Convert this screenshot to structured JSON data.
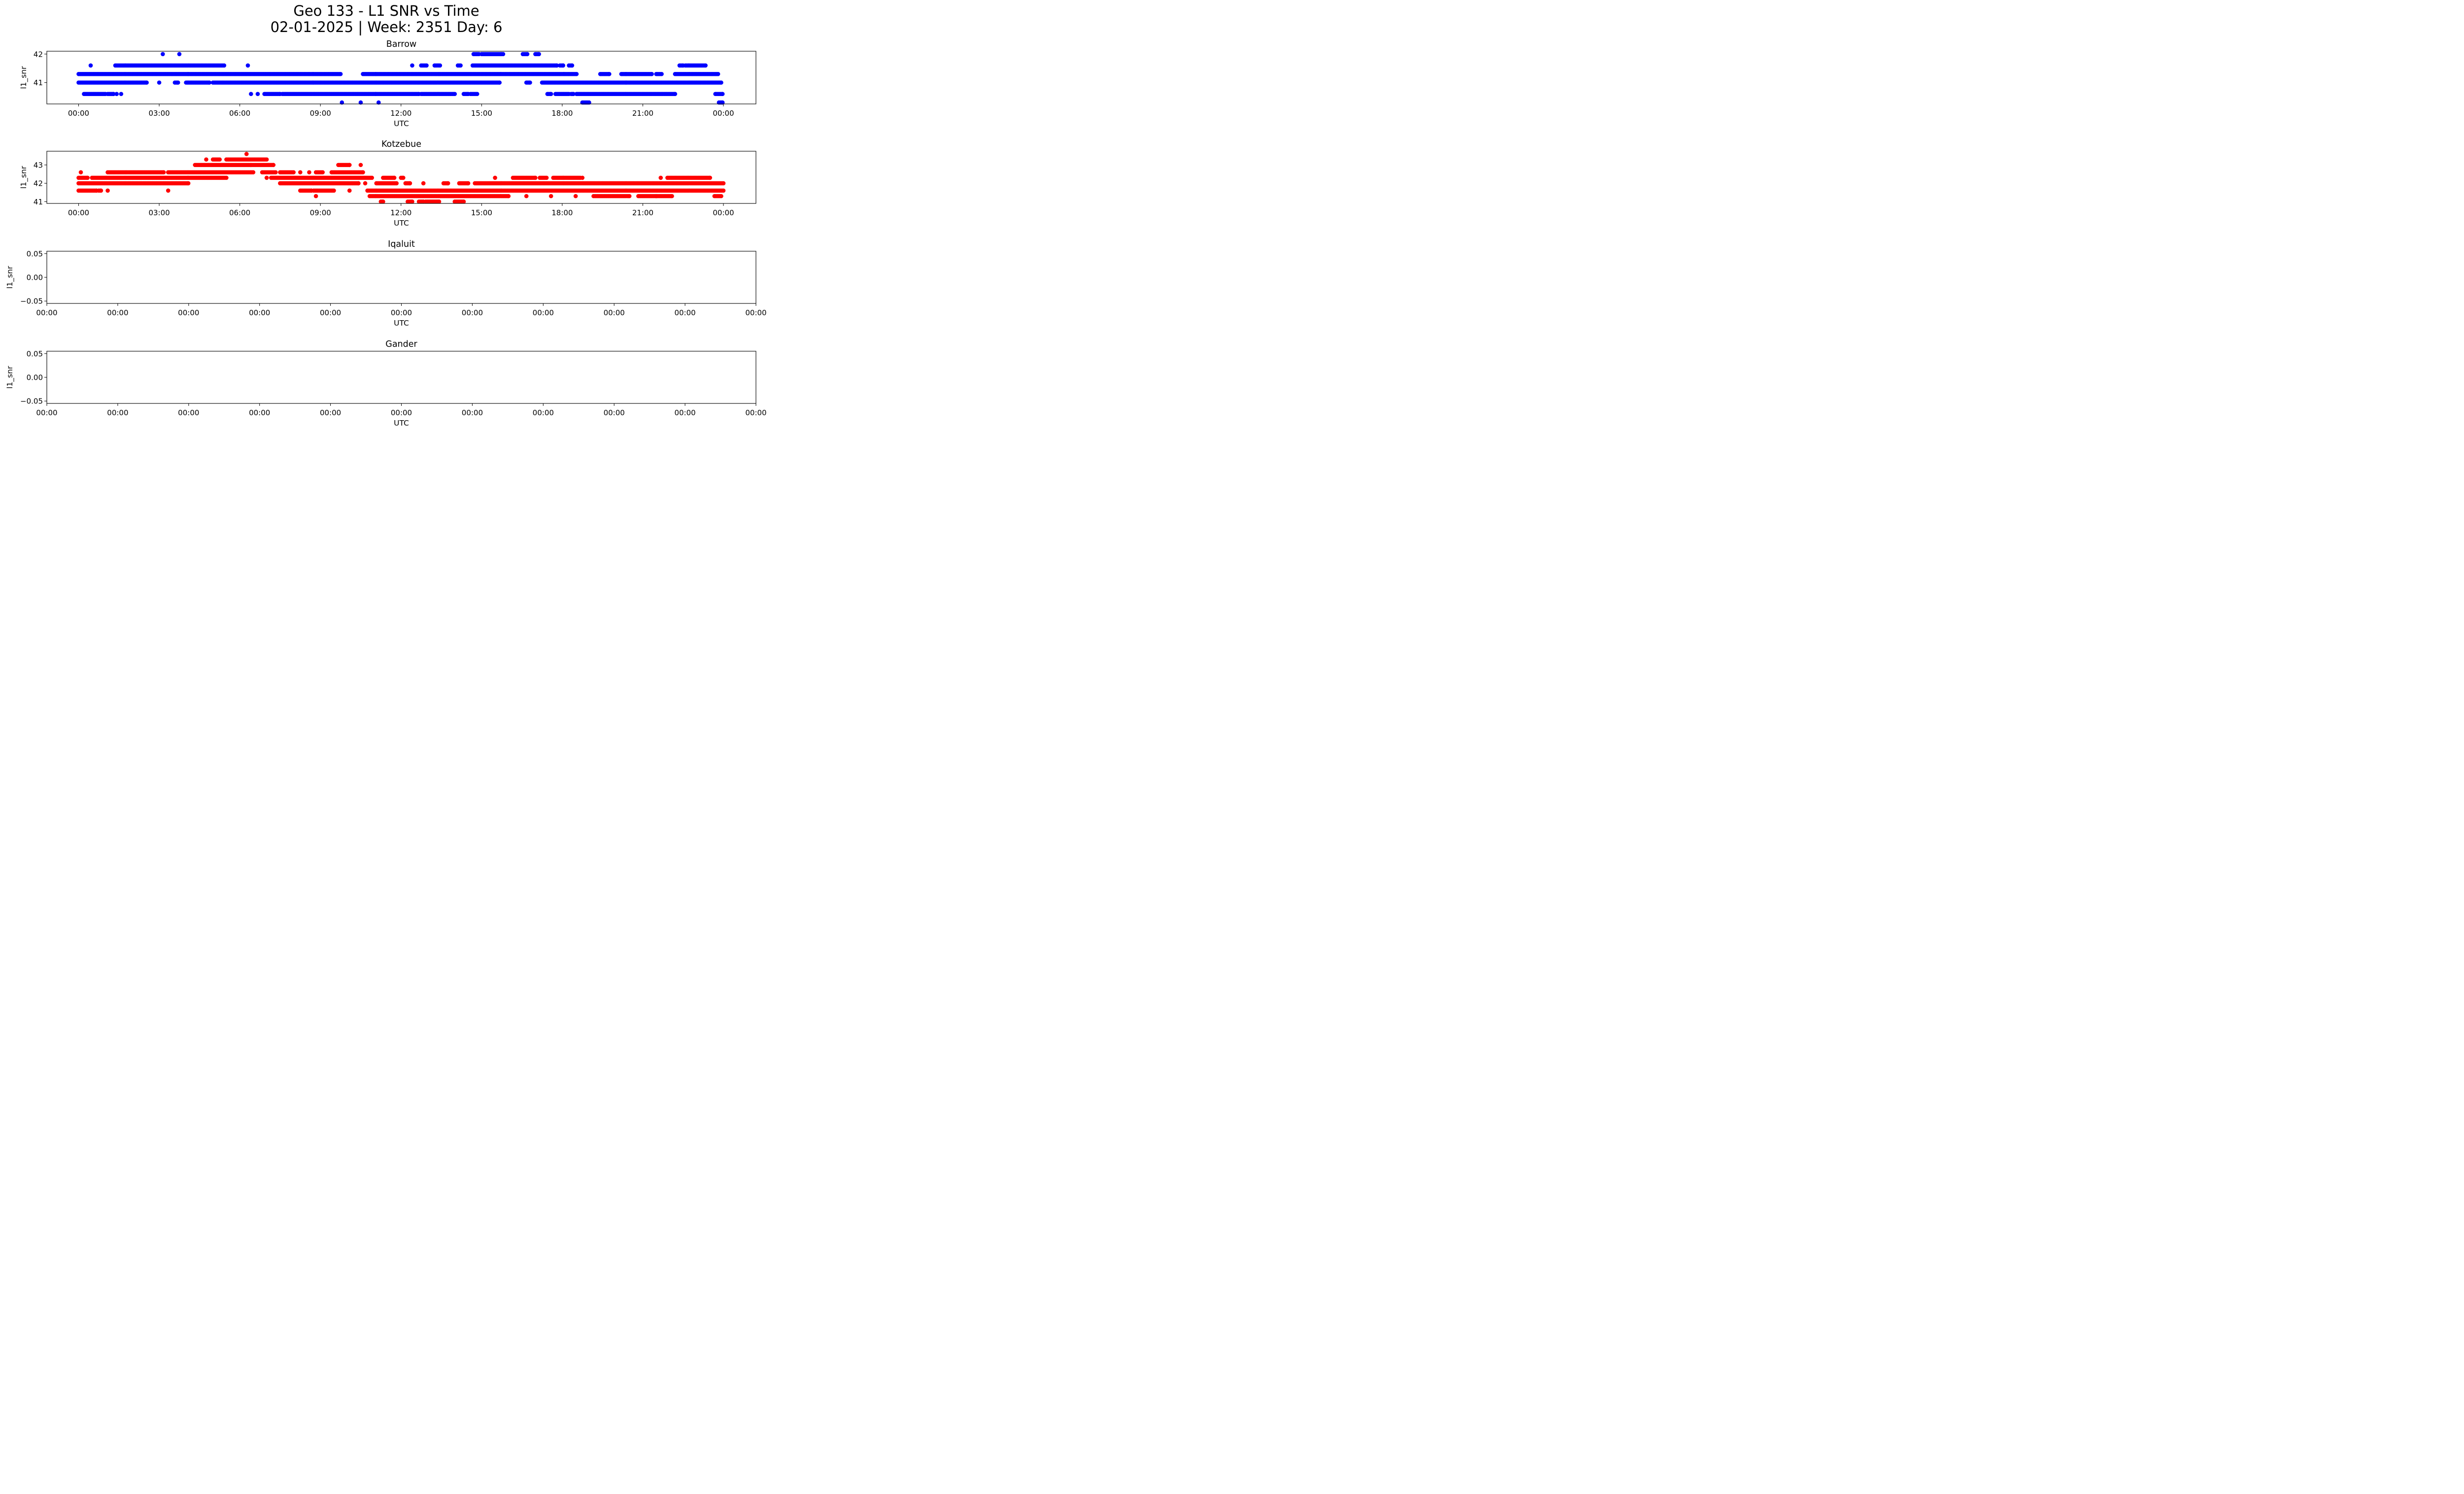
{
  "figure": {
    "title_line1": "Geo 133 - L1 SNR vs Time",
    "title_line2": "02-01-2025 | Week: 2351 Day: 6"
  },
  "colors": {
    "axes": "#000000",
    "background": "#ffffff"
  },
  "chart_data": [
    {
      "type": "scatter",
      "title": "Barrow",
      "xlabel": "UTC",
      "ylabel": "l1_snr",
      "color": "#0000ff",
      "xlim": [
        "2025-02-01T00:00",
        "2025-02-02T00:00"
      ],
      "ylim": [
        40.25,
        42.1
      ],
      "x_ticks": [
        "00:00",
        "03:00",
        "06:00",
        "09:00",
        "12:00",
        "15:00",
        "18:00",
        "21:00",
        "00:00"
      ],
      "y_ticks": [
        "41",
        "42"
      ],
      "y_tick_values": [
        41,
        42
      ],
      "grid": false,
      "series": [
        {
          "runs": [
            {
              "y": 42.0,
              "segments": [
                [
                  "03:08",
                  "03:08"
                ],
                [
                  "03:45",
                  "03:45"
                ],
                [
                  "14:42",
                  "14:54"
                ],
                [
                  "15:00",
                  "15:48"
                ],
                [
                  "16:32",
                  "16:42"
                ],
                [
                  "17:00",
                  "17:08"
                ]
              ]
            },
            {
              "y": 41.6,
              "segments": [
                [
                  "00:27",
                  "00:27"
                ],
                [
                  "01:22",
                  "05:25"
                ],
                [
                  "06:18",
                  "06:18"
                ],
                [
                  "12:25",
                  "12:25"
                ],
                [
                  "12:45",
                  "12:57"
                ],
                [
                  "13:15",
                  "13:27"
                ],
                [
                  "14:07",
                  "14:13"
                ],
                [
                  "14:40",
                  "17:48"
                ],
                [
                  "17:55",
                  "18:02"
                ],
                [
                  "18:15",
                  "18:22"
                ],
                [
                  "22:22",
                  "22:30"
                ],
                [
                  "22:35",
                  "23:20"
                ]
              ]
            },
            {
              "y": 41.3,
              "segments": [
                [
                  "00:00",
                  "09:45"
                ],
                [
                  "10:35",
                  "18:32"
                ],
                [
                  "19:25",
                  "19:45"
                ],
                [
                  "20:12",
                  "21:20"
                ],
                [
                  "21:30",
                  "21:42"
                ],
                [
                  "22:12",
                  "23:48"
                ]
              ]
            },
            {
              "y": 41.0,
              "segments": [
                [
                  "00:00",
                  "02:32"
                ],
                [
                  "03:00",
                  "03:00"
                ],
                [
                  "03:35",
                  "03:42"
                ],
                [
                  "04:00",
                  "04:52"
                ],
                [
                  "05:00",
                  "15:40"
                ],
                [
                  "16:40",
                  "16:48"
                ],
                [
                  "17:15",
                  "23:55"
                ]
              ]
            },
            {
              "y": 40.6,
              "segments": [
                [
                  "00:12",
                  "01:00"
                ],
                [
                  "01:05",
                  "01:18"
                ],
                [
                  "01:25",
                  "01:25"
                ],
                [
                  "01:35",
                  "01:35"
                ],
                [
                  "06:25",
                  "06:25"
                ],
                [
                  "06:40",
                  "06:40"
                ],
                [
                  "06:55",
                  "07:30"
                ],
                [
                  "07:35",
                  "12:40"
                ],
                [
                  "12:45",
                  "14:00"
                ],
                [
                  "14:20",
                  "14:30"
                ],
                [
                  "14:35",
                  "14:50"
                ],
                [
                  "17:27",
                  "17:35"
                ],
                [
                  "17:45",
                  "18:15"
                ],
                [
                  "18:20",
                  "18:25"
                ],
                [
                  "18:32",
                  "22:12"
                ],
                [
                  "23:42",
                  "23:58"
                ]
              ]
            },
            {
              "y": 40.3,
              "segments": [
                [
                  "09:48",
                  "09:48"
                ],
                [
                  "10:30",
                  "10:30"
                ],
                [
                  "11:10",
                  "11:10"
                ],
                [
                  "18:45",
                  "19:00"
                ],
                [
                  "23:50",
                  "23:58"
                ]
              ]
            }
          ]
        }
      ]
    },
    {
      "type": "scatter",
      "title": "Kotzebue",
      "xlabel": "UTC",
      "ylabel": "l1_snr",
      "color": "#ff0000",
      "xlim": [
        "2025-02-01T00:00",
        "2025-02-02T00:00"
      ],
      "ylim": [
        40.9,
        43.75
      ],
      "x_ticks": [
        "00:00",
        "03:00",
        "06:00",
        "09:00",
        "12:00",
        "15:00",
        "18:00",
        "21:00",
        "00:00"
      ],
      "y_ticks": [
        "41",
        "42",
        "43"
      ],
      "y_tick_values": [
        41,
        42,
        43
      ],
      "grid": false,
      "series": [
        {
          "runs": [
            {
              "y": 43.6,
              "segments": [
                [
                  "06:15",
                  "06:15"
                ]
              ]
            },
            {
              "y": 43.3,
              "segments": [
                [
                  "04:45",
                  "04:45"
                ],
                [
                  "05:00",
                  "05:15"
                ],
                [
                  "05:30",
                  "07:00"
                ]
              ]
            },
            {
              "y": 43.0,
              "segments": [
                [
                  "04:20",
                  "07:15"
                ],
                [
                  "09:40",
                  "10:05"
                ],
                [
                  "10:30",
                  "10:30"
                ]
              ]
            },
            {
              "y": 42.6,
              "segments": [
                [
                  "00:05",
                  "00:05"
                ],
                [
                  "01:05",
                  "03:10"
                ],
                [
                  "03:20",
                  "06:30"
                ],
                [
                  "06:50",
                  "07:20"
                ],
                [
                  "07:30",
                  "08:00"
                ],
                [
                  "08:15",
                  "08:15"
                ],
                [
                  "08:35",
                  "08:35"
                ],
                [
                  "08:50",
                  "09:05"
                ],
                [
                  "09:25",
                  "10:35"
                ]
              ]
            },
            {
              "y": 42.3,
              "segments": [
                [
                  "00:00",
                  "00:20"
                ],
                [
                  "00:30",
                  "05:30"
                ],
                [
                  "07:00",
                  "07:00"
                ],
                [
                  "07:10",
                  "10:55"
                ],
                [
                  "11:20",
                  "11:45"
                ],
                [
                  "12:00",
                  "12:05"
                ],
                [
                  "15:30",
                  "15:30"
                ],
                [
                  "16:10",
                  "17:00"
                ],
                [
                  "17:10",
                  "17:25"
                ],
                [
                  "17:40",
                  "18:40"
                ],
                [
                  "18:45",
                  "18:45"
                ],
                [
                  "21:40",
                  "21:40"
                ],
                [
                  "21:55",
                  "23:30"
                ]
              ]
            },
            {
              "y": 42.0,
              "segments": [
                [
                  "00:00",
                  "04:05"
                ],
                [
                  "07:30",
                  "10:25"
                ],
                [
                  "10:40",
                  "10:40"
                ],
                [
                  "11:05",
                  "11:50"
                ],
                [
                  "12:10",
                  "12:20"
                ],
                [
                  "12:50",
                  "12:50"
                ],
                [
                  "13:35",
                  "13:45"
                ],
                [
                  "14:10",
                  "14:30"
                ],
                [
                  "14:45",
                  "24:00"
                ]
              ]
            },
            {
              "y": 41.6,
              "segments": [
                [
                  "00:00",
                  "00:40"
                ],
                [
                  "00:45",
                  "00:50"
                ],
                [
                  "01:05",
                  "01:05"
                ],
                [
                  "03:20",
                  "03:20"
                ],
                [
                  "08:15",
                  "08:40"
                ],
                [
                  "08:45",
                  "09:30"
                ],
                [
                  "10:05",
                  "10:05"
                ],
                [
                  "10:45",
                  "24:00"
                ]
              ]
            },
            {
              "y": 41.3,
              "segments": [
                [
                  "08:50",
                  "08:50"
                ],
                [
                  "10:50",
                  "16:00"
                ],
                [
                  "16:40",
                  "16:40"
                ],
                [
                  "17:35",
                  "17:35"
                ],
                [
                  "18:30",
                  "18:30"
                ],
                [
                  "19:10",
                  "20:30"
                ],
                [
                  "20:50",
                  "21:30"
                ],
                [
                  "21:30",
                  "22:05"
                ],
                [
                  "23:40",
                  "23:55"
                ]
              ]
            },
            {
              "y": 41.0,
              "segments": [
                [
                  "11:15",
                  "11:20"
                ],
                [
                  "12:15",
                  "12:25"
                ],
                [
                  "12:40",
                  "12:50"
                ],
                [
                  "12:55",
                  "13:25"
                ],
                [
                  "14:00",
                  "14:20"
                ]
              ]
            }
          ]
        }
      ]
    },
    {
      "type": "scatter",
      "title": "Iqaluit",
      "xlabel": "UTC",
      "ylabel": "l1_snr",
      "color": "#0000ff",
      "ylim": [
        -0.055,
        0.055
      ],
      "x_ticks": [
        "00:00",
        "00:00",
        "00:00",
        "00:00",
        "00:00",
        "00:00",
        "00:00",
        "00:00",
        "00:00",
        "00:00",
        "00:00"
      ],
      "y_ticks": [
        "−0.05",
        "0.00",
        "0.05"
      ],
      "y_tick_values": [
        -0.05,
        0.0,
        0.05
      ],
      "grid": false,
      "series": []
    },
    {
      "type": "scatter",
      "title": "Gander",
      "xlabel": "UTC",
      "ylabel": "l1_snr",
      "color": "#0000ff",
      "ylim": [
        -0.055,
        0.055
      ],
      "x_ticks": [
        "00:00",
        "00:00",
        "00:00",
        "00:00",
        "00:00",
        "00:00",
        "00:00",
        "00:00",
        "00:00",
        "00:00",
        "00:00"
      ],
      "y_ticks": [
        "−0.05",
        "0.00",
        "0.05"
      ],
      "y_tick_values": [
        -0.05,
        0.0,
        0.05
      ],
      "grid": false,
      "series": []
    }
  ]
}
